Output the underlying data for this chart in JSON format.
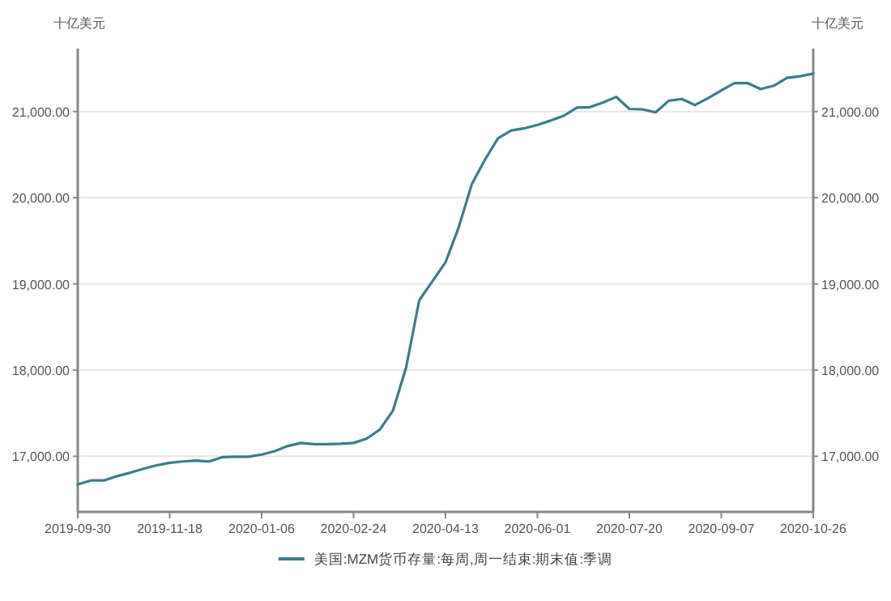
{
  "chart_data": {
    "type": "line",
    "ylabel": "十亿美元",
    "y2label": "十亿美元",
    "x": [
      "2019-09-30",
      "2019-10-07",
      "2019-10-14",
      "2019-10-21",
      "2019-10-28",
      "2019-11-04",
      "2019-11-11",
      "2019-11-18",
      "2019-11-25",
      "2019-12-02",
      "2019-12-09",
      "2019-12-16",
      "2019-12-23",
      "2019-12-30",
      "2020-01-06",
      "2020-01-13",
      "2020-01-20",
      "2020-01-27",
      "2020-02-03",
      "2020-02-10",
      "2020-02-17",
      "2020-02-24",
      "2020-03-02",
      "2020-03-09",
      "2020-03-16",
      "2020-03-23",
      "2020-03-30",
      "2020-04-06",
      "2020-04-13",
      "2020-04-20",
      "2020-04-27",
      "2020-05-04",
      "2020-05-11",
      "2020-05-18",
      "2020-05-25",
      "2020-06-01",
      "2020-06-08",
      "2020-06-15",
      "2020-06-22",
      "2020-06-29",
      "2020-07-06",
      "2020-07-13",
      "2020-07-20",
      "2020-07-27",
      "2020-08-03",
      "2020-08-10",
      "2020-08-17",
      "2020-08-24",
      "2020-08-31",
      "2020-09-07",
      "2020-09-14",
      "2020-09-21",
      "2020-09-28",
      "2020-10-05",
      "2020-10-12",
      "2020-10-19",
      "2020-10-26"
    ],
    "series": [
      {
        "name": "美国:MZM货币存量:每周,周一结束:期末值:季调",
        "color": "#3a7d8c",
        "values": [
          16675,
          16720,
          16720,
          16770,
          16810,
          16855,
          16895,
          16925,
          16940,
          16950,
          16940,
          16990,
          16995,
          16995,
          17020,
          17060,
          17120,
          17155,
          17140,
          17140,
          17145,
          17155,
          17205,
          17310,
          17530,
          18030,
          18810,
          19030,
          19250,
          19655,
          20155,
          20440,
          20690,
          20780,
          20805,
          20845,
          20895,
          20950,
          21045,
          21050,
          21105,
          21170,
          21030,
          21025,
          20990,
          21125,
          21145,
          21075,
          21155,
          21245,
          21330,
          21330,
          21260,
          21300,
          21390,
          21410,
          21440
        ]
      }
    ],
    "xlim": [
      "2019-09-30",
      "2020-10-26"
    ],
    "xticks": [
      "2019-09-30",
      "2019-11-18",
      "2020-01-06",
      "2020-02-24",
      "2020-04-13",
      "2020-06-01",
      "2020-07-20",
      "2020-09-07",
      "2020-10-26"
    ],
    "ylim": [
      16355,
      21730
    ],
    "yticks": [
      {
        "value": 17000,
        "label": "17,000.00"
      },
      {
        "value": 18000,
        "label": "18,000.00"
      },
      {
        "value": 19000,
        "label": "19,000.00"
      },
      {
        "value": 20000,
        "label": "20,000.00"
      },
      {
        "value": 21000,
        "label": "21,000.00"
      }
    ],
    "y2lim": [
      16355,
      21730
    ],
    "y2ticks": [
      {
        "value": 17000,
        "label": "17,000.00"
      },
      {
        "value": 18000,
        "label": "18,000.00"
      },
      {
        "value": 19000,
        "label": "19,000.00"
      },
      {
        "value": 20000,
        "label": "20,000.00"
      },
      {
        "value": 21000,
        "label": "21,000.00"
      }
    ],
    "grid": "y",
    "legend": "bottom",
    "marker": "none",
    "line_style": "solid"
  }
}
